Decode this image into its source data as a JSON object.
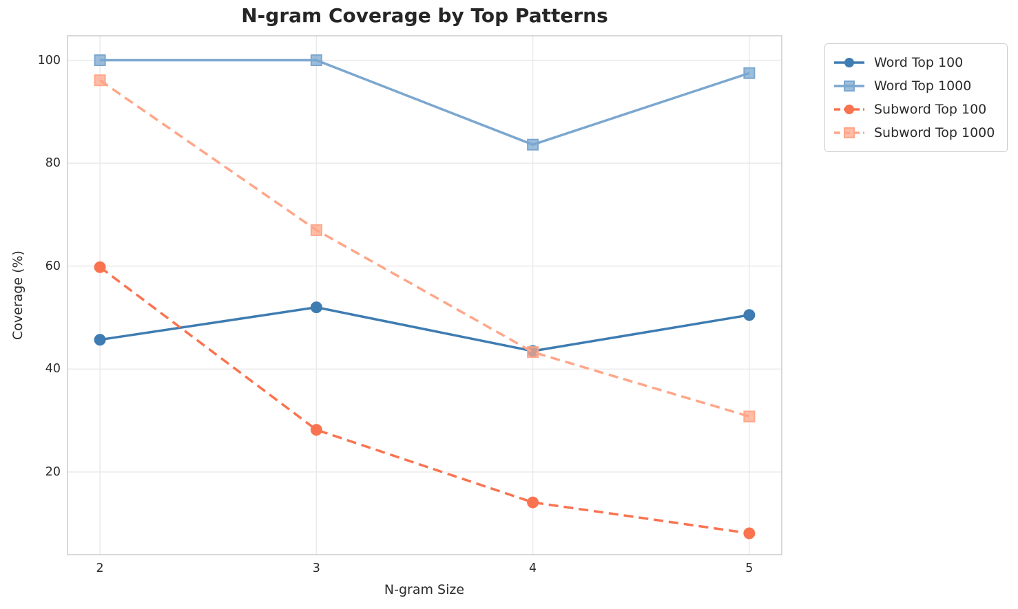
{
  "title": "N-gram Coverage by Top Patterns",
  "chart_data": {
    "type": "line",
    "title": "N-gram Coverage by Top Patterns",
    "xlabel": "N-gram Size",
    "ylabel": "Coverage (%)",
    "x": [
      2,
      3,
      4,
      5
    ],
    "xticks": [
      "2",
      "3",
      "4",
      "5"
    ],
    "yticks": [
      "20",
      "40",
      "60",
      "80",
      "100"
    ],
    "ytick_values": [
      20,
      40,
      60,
      80,
      100
    ],
    "xlim": [
      1.85,
      5.15
    ],
    "ylim": [
      3.95,
      104.75
    ],
    "grid": true,
    "legend_position": "outside-upper-right",
    "series": [
      {
        "name": "Word Top 100",
        "color": "#3E7CB1",
        "marker": "circle",
        "line_style": "solid",
        "values": [
          45.7,
          52.0,
          43.5,
          50.5
        ]
      },
      {
        "name": "Word Top 1000",
        "color": "#7BA7CF",
        "marker": "square",
        "line_style": "solid",
        "values": [
          100.0,
          100.0,
          83.6,
          97.5
        ]
      },
      {
        "name": "Subword Top 100",
        "color": "#FA7350",
        "marker": "circle",
        "line_style": "dashed",
        "values": [
          59.8,
          28.2,
          14.1,
          8.1
        ]
      },
      {
        "name": "Subword Top 1000",
        "color": "#FFA689",
        "marker": "square",
        "line_style": "dashed",
        "values": [
          96.1,
          67.0,
          43.3,
          30.8
        ]
      }
    ]
  },
  "colors": {
    "background": "#ffffff",
    "gridline": "#e9e9e9",
    "spine": "#cccccc",
    "text": "#2b2b2b",
    "title_text": "#262626"
  }
}
